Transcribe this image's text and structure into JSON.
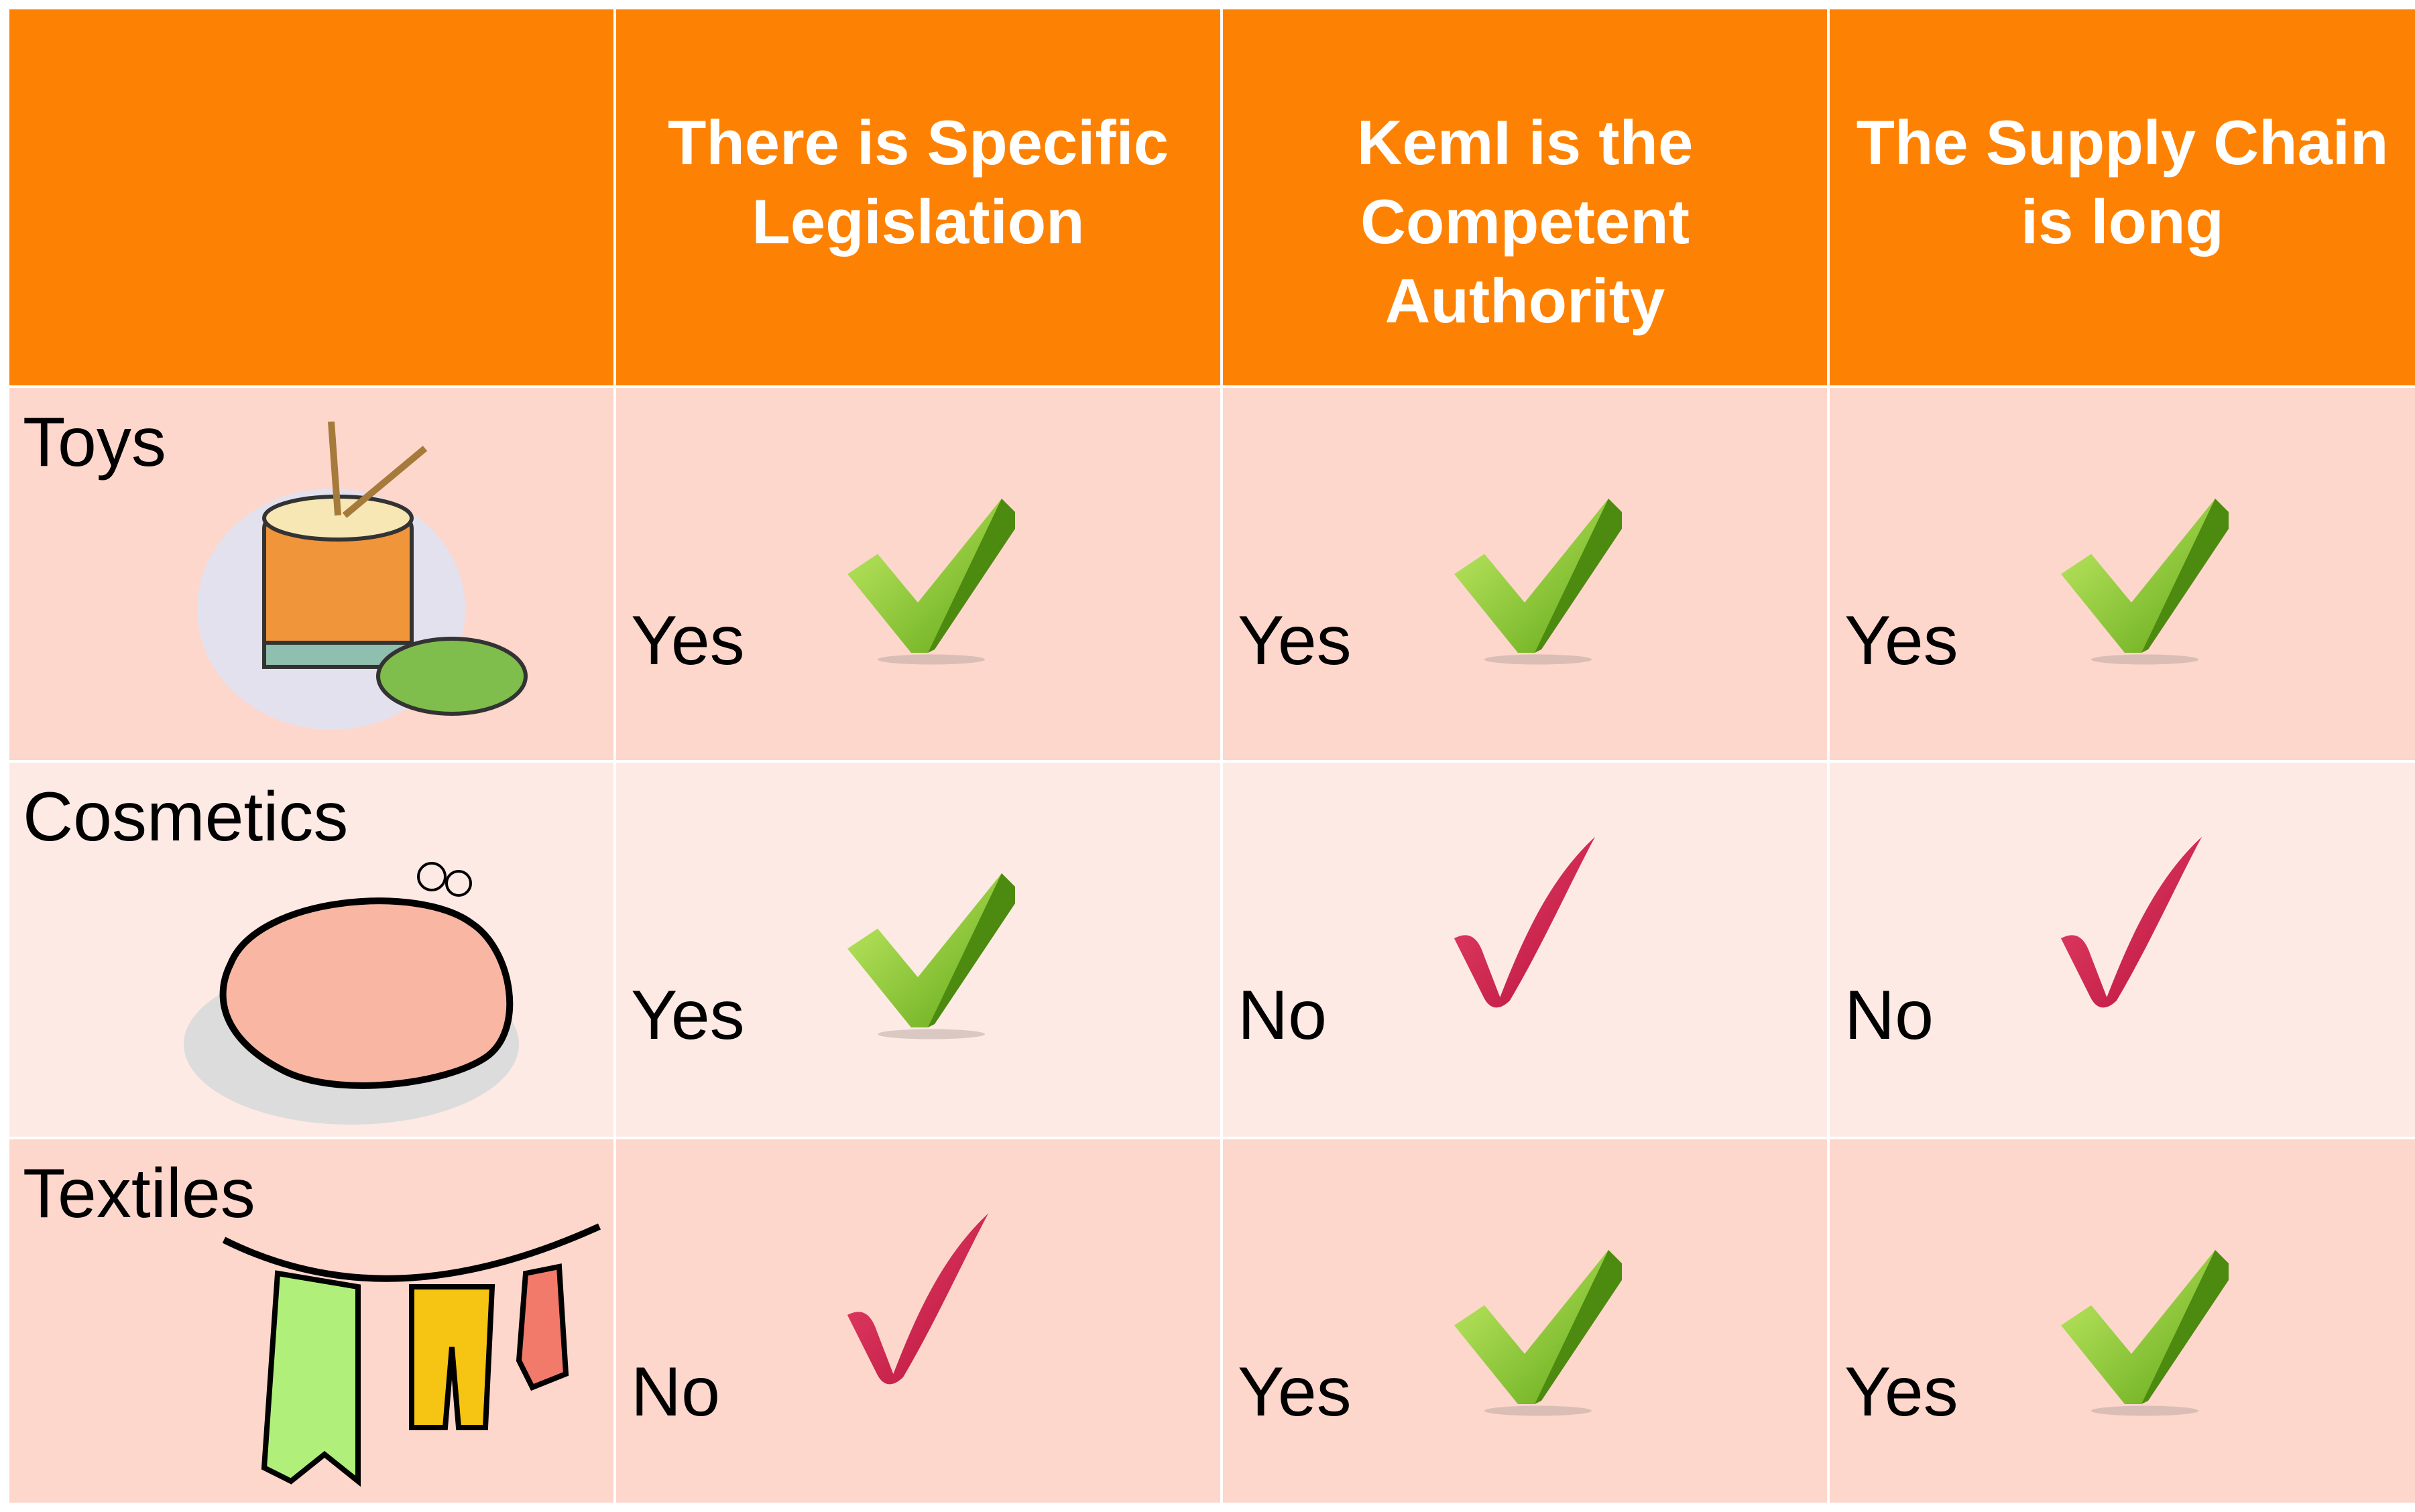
{
  "table": {
    "columns": [
      "There is Specific Legislation",
      "KemI is the Competent Authority",
      "The Supply Chain is long"
    ],
    "rows": [
      {
        "label": "Toys",
        "cells": [
          "Yes",
          "Yes",
          "Yes"
        ]
      },
      {
        "label": "Cosmetics",
        "cells": [
          "Yes",
          "No",
          "No"
        ]
      },
      {
        "label": "Textiles",
        "cells": [
          "No",
          "Yes",
          "Yes"
        ]
      }
    ]
  }
}
